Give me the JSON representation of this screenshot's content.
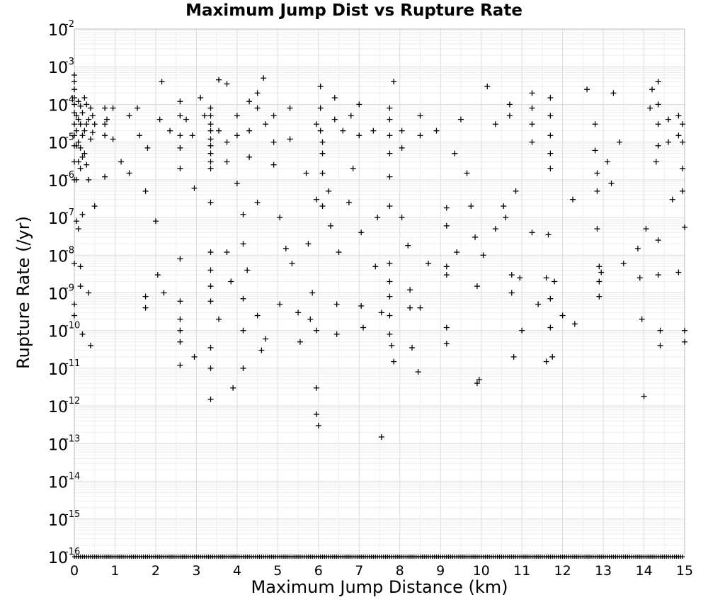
{
  "chart_data": {
    "type": "scatter",
    "title": "Maximum Jump Dist vs Rupture Rate",
    "xlabel": "Maximum Jump Distance (km)",
    "ylabel": "Rupture Rate (/yr)",
    "xlim": [
      0,
      15
    ],
    "ylim": [
      1e-16,
      0.01
    ],
    "yscale": "log",
    "grid": true,
    "marker": "+",
    "marker_color": "#000000",
    "x_ticks": [
      "0",
      "1",
      "2",
      "3",
      "4",
      "5",
      "6",
      "7",
      "8",
      "9",
      "10",
      "11",
      "12",
      "13",
      "14",
      "15"
    ],
    "y_ticks": [
      {
        "base": "10",
        "exp": "-2"
      },
      {
        "base": "10",
        "exp": "-3"
      },
      {
        "base": "10",
        "exp": "-4"
      },
      {
        "base": "10",
        "exp": "-5"
      },
      {
        "base": "10",
        "exp": "-6"
      },
      {
        "base": "10",
        "exp": "-7"
      },
      {
        "base": "10",
        "exp": "-8"
      },
      {
        "base": "10",
        "exp": "-9"
      },
      {
        "base": "10",
        "exp": "-10"
      },
      {
        "base": "10",
        "exp": "-11"
      },
      {
        "base": "10",
        "exp": "-12"
      },
      {
        "base": "10",
        "exp": "-13"
      },
      {
        "base": "10",
        "exp": "-14"
      },
      {
        "base": "10",
        "exp": "-15"
      },
      {
        "base": "10",
        "exp": "-16"
      }
    ],
    "points": [
      [
        0.0,
        0.0006
      ],
      [
        0.0,
        0.0004
      ],
      [
        0.0,
        0.00025
      ],
      [
        0.0,
        0.00015
      ],
      [
        0.0,
        0.0001
      ],
      [
        0.0,
        6e-05
      ],
      [
        0.0,
        3e-05
      ],
      [
        0.0,
        1.5e-05
      ],
      [
        0.0,
        8e-06
      ],
      [
        0.0,
        3e-06
      ],
      [
        0.0,
        1e-06
      ],
      [
        0.0,
        6e-09
      ],
      [
        0.0,
        5e-10
      ],
      [
        0.0,
        2.5e-10
      ],
      [
        0.05,
        5e-05
      ],
      [
        0.05,
        2e-05
      ],
      [
        0.05,
        8e-06
      ],
      [
        0.05,
        1e-06
      ],
      [
        0.05,
        8e-08
      ],
      [
        0.1,
        0.00012
      ],
      [
        0.1,
        4e-05
      ],
      [
        0.1,
        1e-05
      ],
      [
        0.1,
        3e-06
      ],
      [
        0.1,
        5e-08
      ],
      [
        0.15,
        9e-05
      ],
      [
        0.15,
        3e-05
      ],
      [
        0.15,
        7e-06
      ],
      [
        0.15,
        2e-06
      ],
      [
        0.15,
        5e-09
      ],
      [
        0.15,
        1.5e-09
      ],
      [
        0.2,
        6e-05
      ],
      [
        0.2,
        1.5e-05
      ],
      [
        0.2,
        4e-06
      ],
      [
        0.2,
        1.2e-07
      ],
      [
        0.2,
        8e-11
      ],
      [
        0.25,
        0.00015
      ],
      [
        0.25,
        2e-05
      ],
      [
        0.25,
        5e-06
      ],
      [
        0.3,
        0.0001
      ],
      [
        0.3,
        3e-05
      ],
      [
        0.3,
        2.5e-06
      ],
      [
        0.35,
        4e-05
      ],
      [
        0.35,
        1e-06
      ],
      [
        0.35,
        1e-09
      ],
      [
        0.4,
        8e-05
      ],
      [
        0.4,
        1.2e-05
      ],
      [
        0.4,
        4e-11
      ],
      [
        0.45,
        5e-05
      ],
      [
        0.45,
        1.8e-05
      ],
      [
        0.5,
        2e-07
      ],
      [
        0.5,
        3e-05
      ],
      [
        0.75,
        8e-05
      ],
      [
        0.75,
        3e-05
      ],
      [
        0.75,
        1.5e-05
      ],
      [
        0.75,
        1.2e-06
      ],
      [
        0.8,
        4e-05
      ],
      [
        0.95,
        8e-05
      ],
      [
        0.95,
        1.2e-05
      ],
      [
        1.15,
        3e-06
      ],
      [
        1.35,
        5e-05
      ],
      [
        1.35,
        1.5e-06
      ],
      [
        1.55,
        8e-05
      ],
      [
        1.6,
        1.5e-05
      ],
      [
        1.75,
        5e-07
      ],
      [
        1.75,
        4e-10
      ],
      [
        1.75,
        8e-10
      ],
      [
        1.8,
        7e-06
      ],
      [
        2.0,
        8e-08
      ],
      [
        2.05,
        3e-09
      ],
      [
        2.1,
        4e-05
      ],
      [
        2.15,
        0.0004
      ],
      [
        2.2,
        1e-09
      ],
      [
        2.35,
        2e-05
      ],
      [
        2.6,
        0.00012
      ],
      [
        2.6,
        5e-05
      ],
      [
        2.6,
        1.5e-05
      ],
      [
        2.6,
        7e-06
      ],
      [
        2.6,
        2e-06
      ],
      [
        2.6,
        8e-09
      ],
      [
        2.6,
        6e-10
      ],
      [
        2.6,
        2e-10
      ],
      [
        2.6,
        1e-10
      ],
      [
        2.6,
        5e-11
      ],
      [
        2.6,
        1.2e-11
      ],
      [
        2.75,
        4e-05
      ],
      [
        2.9,
        1.5e-05
      ],
      [
        2.95,
        6e-07
      ],
      [
        2.95,
        2e-11
      ],
      [
        3.1,
        0.00015
      ],
      [
        3.2,
        5e-05
      ],
      [
        3.35,
        8e-05
      ],
      [
        3.35,
        5e-05
      ],
      [
        3.35,
        3e-05
      ],
      [
        3.35,
        2e-05
      ],
      [
        3.35,
        1.2e-05
      ],
      [
        3.35,
        8e-06
      ],
      [
        3.35,
        5e-06
      ],
      [
        3.35,
        3e-06
      ],
      [
        3.35,
        2e-06
      ],
      [
        3.35,
        2.5e-07
      ],
      [
        3.35,
        1.2e-08
      ],
      [
        3.35,
        4e-09
      ],
      [
        3.35,
        1.5e-09
      ],
      [
        3.35,
        6e-10
      ],
      [
        3.35,
        1e-11
      ],
      [
        3.35,
        1.5e-12
      ],
      [
        3.35,
        3.5e-11
      ],
      [
        3.55,
        0.00045
      ],
      [
        3.55,
        2e-05
      ],
      [
        3.55,
        2e-10
      ],
      [
        3.75,
        0.00035
      ],
      [
        3.75,
        1e-05
      ],
      [
        3.75,
        3e-06
      ],
      [
        3.75,
        1.2e-08
      ],
      [
        3.85,
        2e-09
      ],
      [
        3.9,
        3e-12
      ],
      [
        4.0,
        5e-05
      ],
      [
        4.0,
        1.5e-05
      ],
      [
        4.0,
        8e-07
      ],
      [
        4.15,
        1.2e-07
      ],
      [
        4.15,
        2e-08
      ],
      [
        4.15,
        7e-10
      ],
      [
        4.15,
        1e-10
      ],
      [
        4.15,
        1e-11
      ],
      [
        4.25,
        4e-09
      ],
      [
        4.3,
        0.00012
      ],
      [
        4.3,
        2e-05
      ],
      [
        4.3,
        4e-06
      ],
      [
        4.5,
        0.0002
      ],
      [
        4.5,
        8e-05
      ],
      [
        4.5,
        2.5e-07
      ],
      [
        4.5,
        2.5e-10
      ],
      [
        4.6,
        3e-11
      ],
      [
        4.65,
        0.0005
      ],
      [
        4.7,
        3e-05
      ],
      [
        4.7,
        6e-11
      ],
      [
        4.9,
        5e-05
      ],
      [
        4.9,
        1e-05
      ],
      [
        4.9,
        2.5e-06
      ],
      [
        5.05,
        1e-07
      ],
      [
        5.05,
        5e-10
      ],
      [
        5.2,
        1.5e-08
      ],
      [
        5.3,
        8e-05
      ],
      [
        5.3,
        1.2e-05
      ],
      [
        5.35,
        6e-09
      ],
      [
        5.5,
        3e-10
      ],
      [
        5.55,
        5e-11
      ],
      [
        5.7,
        1.5e-06
      ],
      [
        5.75,
        2e-08
      ],
      [
        5.8,
        2e-10
      ],
      [
        5.85,
        1e-09
      ],
      [
        5.95,
        3e-05
      ],
      [
        5.95,
        3e-07
      ],
      [
        5.95,
        1e-10
      ],
      [
        5.95,
        3e-12
      ],
      [
        5.95,
        6e-13
      ],
      [
        6.0,
        3e-13
      ],
      [
        6.05,
        0.0003
      ],
      [
        6.05,
        8e-05
      ],
      [
        6.05,
        2e-05
      ],
      [
        6.1,
        1e-05
      ],
      [
        6.1,
        5e-06
      ],
      [
        6.1,
        1.5e-06
      ],
      [
        6.1,
        2e-07
      ],
      [
        6.25,
        5e-07
      ],
      [
        6.3,
        6e-08
      ],
      [
        6.4,
        0.00015
      ],
      [
        6.4,
        4e-05
      ],
      [
        6.45,
        5e-10
      ],
      [
        6.45,
        8e-11
      ],
      [
        6.5,
        1.2e-08
      ],
      [
        6.6,
        2e-05
      ],
      [
        6.75,
        2.5e-07
      ],
      [
        6.8,
        5e-05
      ],
      [
        6.85,
        2e-06
      ],
      [
        7.0,
        0.0001
      ],
      [
        7.0,
        1.5e-05
      ],
      [
        7.05,
        4e-08
      ],
      [
        7.05,
        4.5e-10
      ],
      [
        7.1,
        1.2e-10
      ],
      [
        7.35,
        2e-05
      ],
      [
        7.4,
        5e-09
      ],
      [
        7.45,
        1e-07
      ],
      [
        7.55,
        3e-10
      ],
      [
        7.55,
        1.5e-13
      ],
      [
        7.75,
        8e-05
      ],
      [
        7.75,
        4e-05
      ],
      [
        7.75,
        1.5e-05
      ],
      [
        7.75,
        5e-06
      ],
      [
        7.75,
        1.2e-06
      ],
      [
        7.75,
        2e-07
      ],
      [
        7.75,
        6e-09
      ],
      [
        7.75,
        2e-09
      ],
      [
        7.75,
        8e-10
      ],
      [
        7.75,
        2.5e-10
      ],
      [
        7.75,
        8e-11
      ],
      [
        7.8,
        4e-11
      ],
      [
        7.85,
        1.5e-11
      ],
      [
        7.85,
        0.0004
      ],
      [
        8.05,
        2e-05
      ],
      [
        8.05,
        7e-06
      ],
      [
        8.05,
        1e-07
      ],
      [
        8.2,
        1.8e-08
      ],
      [
        8.25,
        1.2e-09
      ],
      [
        8.25,
        4e-10
      ],
      [
        8.3,
        3.5e-11
      ],
      [
        8.45,
        8e-12
      ],
      [
        8.5,
        5e-05
      ],
      [
        8.5,
        1.5e-05
      ],
      [
        8.5,
        4e-10
      ],
      [
        8.7,
        6e-09
      ],
      [
        8.9,
        2e-05
      ],
      [
        9.15,
        1.8e-07
      ],
      [
        9.15,
        6e-08
      ],
      [
        9.15,
        5e-09
      ],
      [
        9.15,
        3e-09
      ],
      [
        9.15,
        1.2e-10
      ],
      [
        9.15,
        4.5e-11
      ],
      [
        9.35,
        5e-06
      ],
      [
        9.4,
        1.2e-08
      ],
      [
        9.5,
        4e-05
      ],
      [
        9.65,
        1.5e-06
      ],
      [
        9.75,
        2e-07
      ],
      [
        9.85,
        3e-08
      ],
      [
        9.9,
        1.5e-09
      ],
      [
        9.9,
        4e-12
      ],
      [
        9.95,
        5e-12
      ],
      [
        10.05,
        1e-08
      ],
      [
        10.15,
        0.0003
      ],
      [
        10.35,
        3e-05
      ],
      [
        10.35,
        5e-08
      ],
      [
        10.55,
        2e-07
      ],
      [
        10.6,
        1e-07
      ],
      [
        10.7,
        0.0001
      ],
      [
        10.7,
        5e-05
      ],
      [
        10.75,
        3e-09
      ],
      [
        10.75,
        1e-09
      ],
      [
        10.8,
        2e-11
      ],
      [
        10.85,
        5e-07
      ],
      [
        10.95,
        2.5e-09
      ],
      [
        11.0,
        1e-10
      ],
      [
        11.25,
        0.0002
      ],
      [
        11.25,
        8e-05
      ],
      [
        11.25,
        3e-05
      ],
      [
        11.25,
        1e-05
      ],
      [
        11.25,
        4e-08
      ],
      [
        11.4,
        5e-10
      ],
      [
        11.6,
        2.5e-09
      ],
      [
        11.6,
        1.5e-11
      ],
      [
        11.65,
        3.5e-08
      ],
      [
        11.7,
        0.00015
      ],
      [
        11.7,
        5e-05
      ],
      [
        11.7,
        1.5e-05
      ],
      [
        11.7,
        5e-06
      ],
      [
        11.7,
        2e-06
      ],
      [
        11.7,
        7e-10
      ],
      [
        11.7,
        1.2e-10
      ],
      [
        11.75,
        2e-11
      ],
      [
        11.8,
        2e-09
      ],
      [
        12.0,
        2.5e-10
      ],
      [
        12.3,
        1.5e-10
      ],
      [
        12.25,
        3e-07
      ],
      [
        12.6,
        0.00025
      ],
      [
        12.8,
        3e-05
      ],
      [
        12.8,
        6e-06
      ],
      [
        12.85,
        1.5e-06
      ],
      [
        12.85,
        5e-07
      ],
      [
        12.85,
        5e-08
      ],
      [
        12.9,
        5e-09
      ],
      [
        12.9,
        2e-09
      ],
      [
        12.9,
        8e-10
      ],
      [
        12.95,
        3.5e-09
      ],
      [
        13.1,
        3e-06
      ],
      [
        13.2,
        8e-07
      ],
      [
        13.25,
        0.0002
      ],
      [
        13.4,
        1e-05
      ],
      [
        13.5,
        6e-09
      ],
      [
        13.85,
        1.5e-08
      ],
      [
        13.9,
        2.5e-09
      ],
      [
        13.95,
        2e-10
      ],
      [
        14.0,
        1.8e-12
      ],
      [
        14.05,
        5e-08
      ],
      [
        14.15,
        8e-05
      ],
      [
        14.2,
        0.00025
      ],
      [
        14.3,
        3e-06
      ],
      [
        14.35,
        0.0004
      ],
      [
        14.35,
        0.0001
      ],
      [
        14.35,
        3e-05
      ],
      [
        14.35,
        8e-06
      ],
      [
        14.35,
        2.5e-08
      ],
      [
        14.35,
        3e-09
      ],
      [
        14.4,
        1e-10
      ],
      [
        14.4,
        4e-11
      ],
      [
        14.6,
        4e-05
      ],
      [
        14.6,
        1e-05
      ],
      [
        14.7,
        3e-07
      ],
      [
        14.85,
        5e-05
      ],
      [
        14.85,
        1.5e-05
      ],
      [
        14.85,
        3.5e-09
      ],
      [
        14.95,
        3e-05
      ],
      [
        14.95,
        1e-05
      ],
      [
        14.95,
        2e-06
      ],
      [
        14.95,
        5e-07
      ],
      [
        15.0,
        5.5e-08
      ],
      [
        15.0,
        1e-10
      ],
      [
        15.0,
        5e-11
      ]
    ],
    "floor_value": 1e-16
  }
}
